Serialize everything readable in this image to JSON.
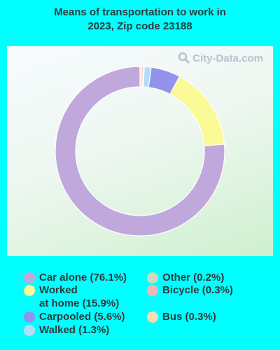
{
  "chart_data": {
    "type": "pie",
    "title_lines": [
      "Means of transportation to work in",
      "2023, Zip code 23188"
    ],
    "watermark": "City-Data.com",
    "categories": [
      "Car alone",
      "Worked at home",
      "Carpooled",
      "Walked",
      "Other",
      "Bicycle",
      "Bus"
    ],
    "values": [
      76.1,
      15.9,
      5.6,
      1.3,
      0.2,
      0.3,
      0.3
    ],
    "colors": [
      "#c0a8dc",
      "#fafa96",
      "#9393ee",
      "#b4dcfa",
      "#c8dcbe",
      "#f2b4b4",
      "#f8dcb4"
    ],
    "start_angle_deg": 0,
    "direction": "counterclockwise",
    "legend": {
      "placement": "bottom",
      "entries": [
        {
          "lines": [
            "Car alone (76.1%)"
          ]
        },
        {
          "lines": [
            "Worked",
            "at home (15.9%)"
          ]
        },
        {
          "lines": [
            "Carpooled (5.6%)"
          ]
        },
        {
          "lines": [
            "Walked (1.3%)"
          ]
        },
        {
          "lines": [
            "Other (0.2%)"
          ]
        },
        {
          "lines": [
            "Bicycle (0.3%)"
          ]
        },
        {
          "lines": [
            "Bus (0.3%)"
          ]
        }
      ]
    }
  }
}
